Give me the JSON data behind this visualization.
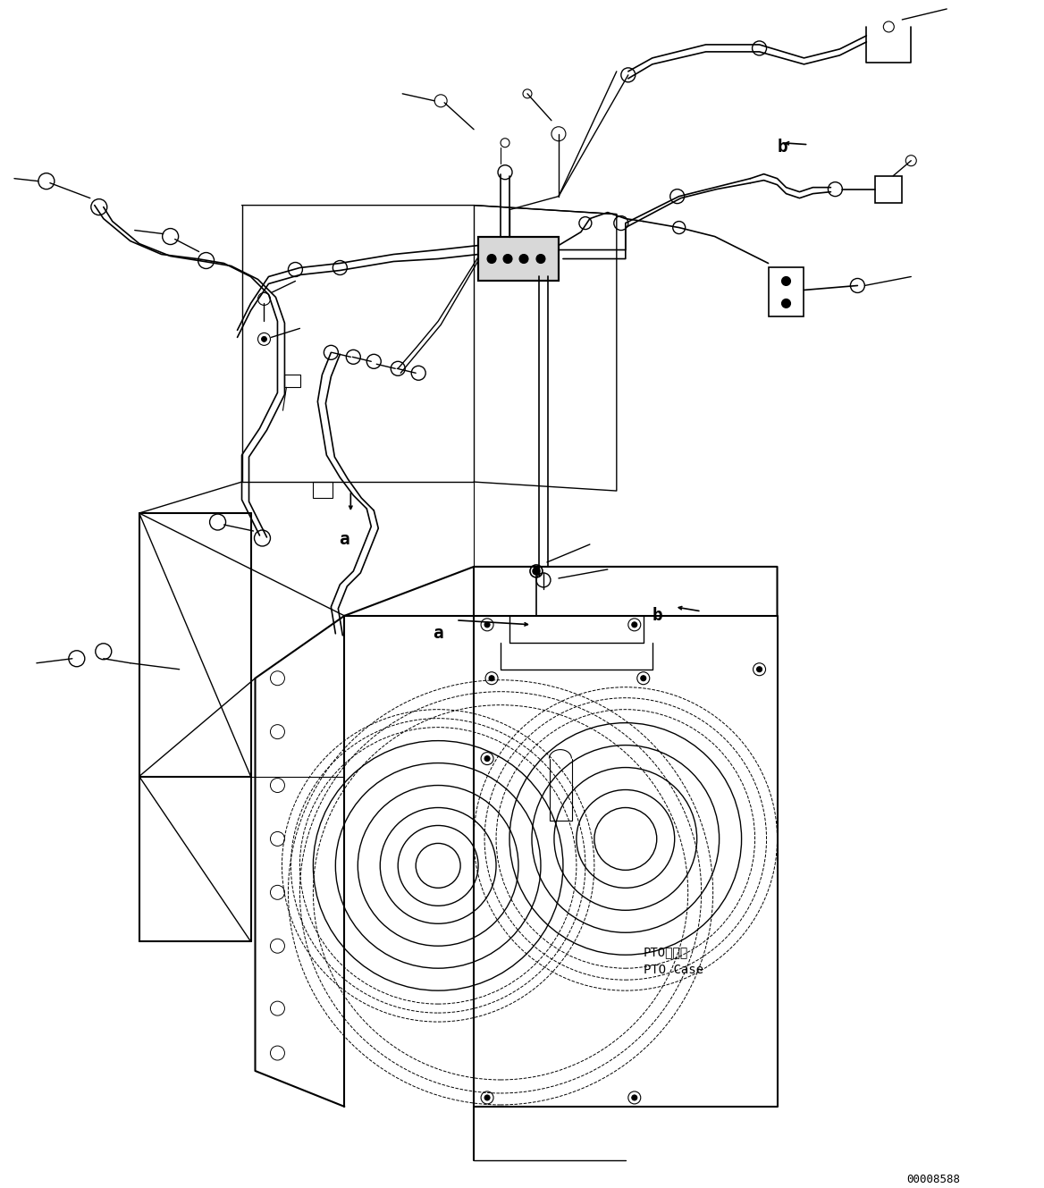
{
  "background_color": "#ffffff",
  "line_color": "#000000",
  "diagram_id": "00008588",
  "fig_width": 11.68,
  "fig_height": 13.29,
  "dpi": 100,
  "labels": {
    "pto_case_jp": "PTOケース",
    "pto_case_en": "PTO Case",
    "a": "a",
    "b": "b"
  }
}
